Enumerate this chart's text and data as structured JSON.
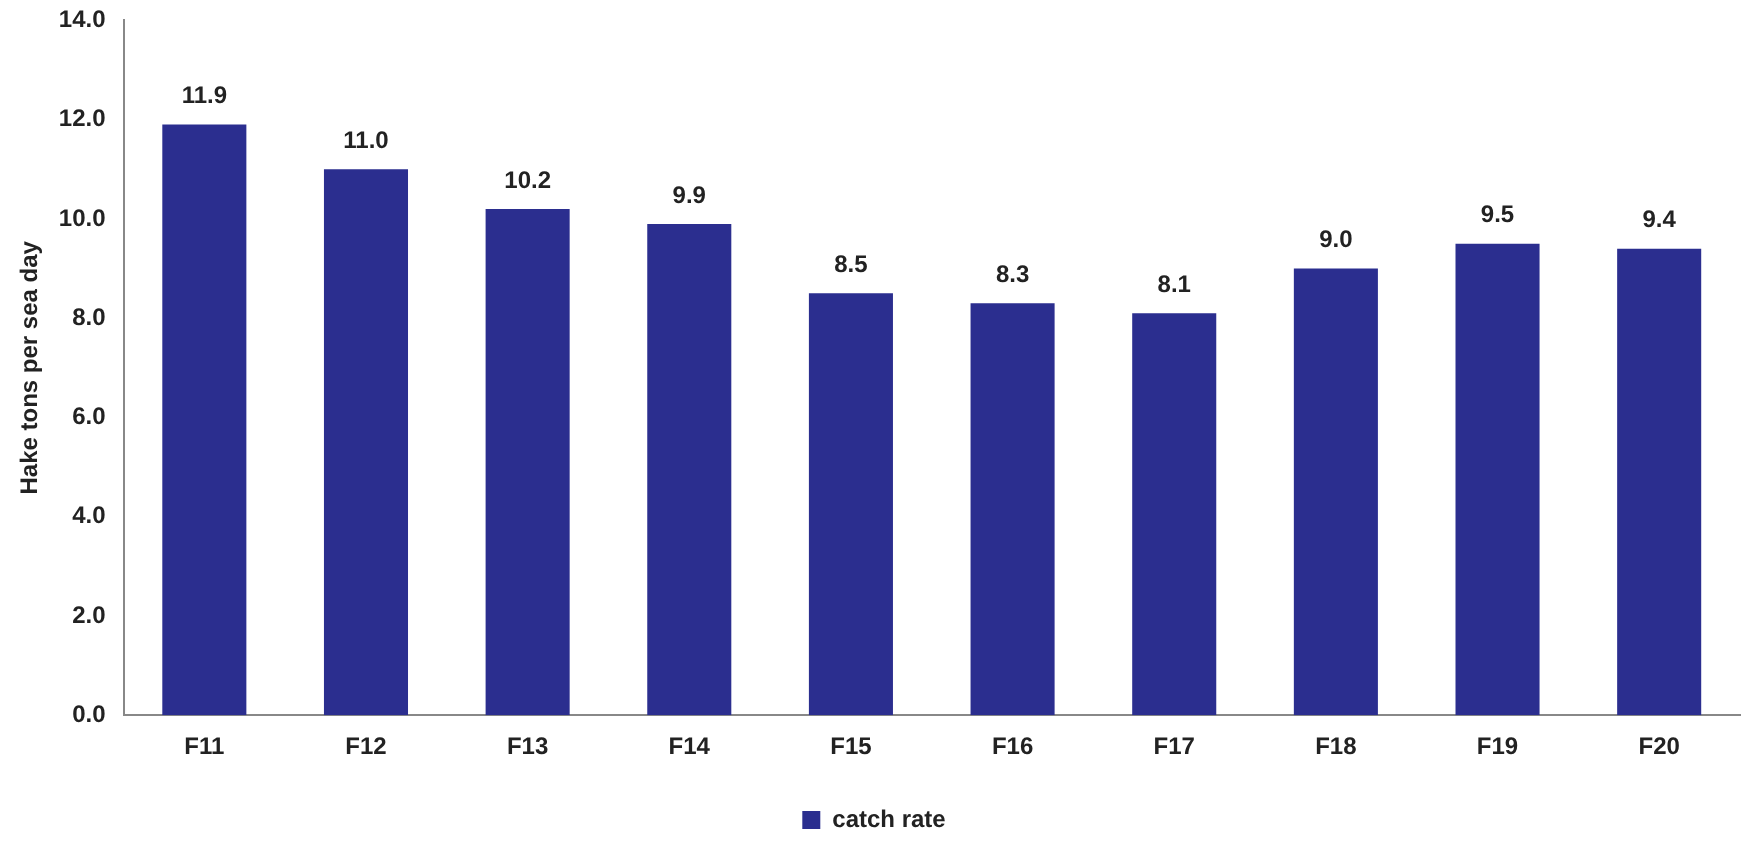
{
  "chart_data": {
    "type": "bar",
    "ylabel": "Hake tons per sea day",
    "categories": [
      "F11",
      "F12",
      "F13",
      "F14",
      "F15",
      "F16",
      "F17",
      "F18",
      "F19",
      "F20"
    ],
    "series": [
      {
        "name": "catch rate",
        "color": "#2b2e8f",
        "values": [
          11.9,
          11.0,
          10.2,
          9.9,
          8.5,
          8.3,
          8.1,
          9.0,
          9.5,
          9.4
        ]
      }
    ],
    "ylim": [
      0,
      14
    ],
    "yticks": [
      {
        "value": 0,
        "label": "0.0"
      },
      {
        "value": 2,
        "label": "2.0"
      },
      {
        "value": 4,
        "label": "4.0"
      },
      {
        "value": 6,
        "label": "6.0"
      },
      {
        "value": 8,
        "label": "8.0"
      },
      {
        "value": 10,
        "label": "10.0"
      },
      {
        "value": 12,
        "label": "12.0"
      },
      {
        "value": 14,
        "label": "14.0"
      }
    ],
    "value_labels": [
      "11.9",
      "11.0",
      "10.2",
      "9.9",
      "8.5",
      "8.3",
      "8.1",
      "9.0",
      "9.5",
      "9.4"
    ],
    "grid": false,
    "legend": "bottom"
  }
}
